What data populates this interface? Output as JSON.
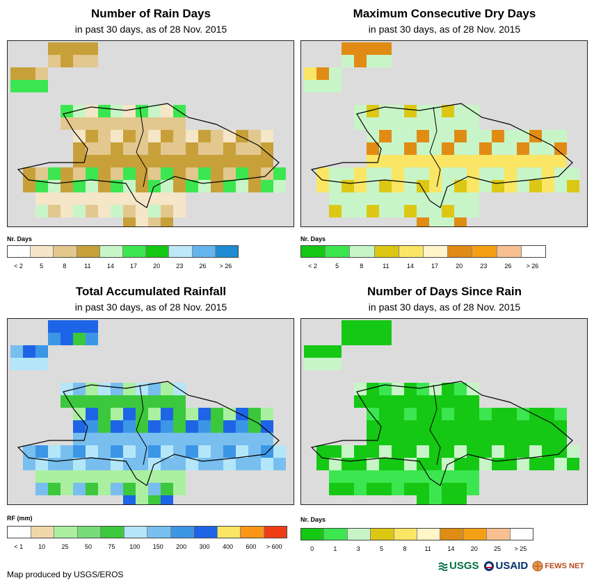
{
  "panels": [
    {
      "id": "rain_days",
      "title": "Number of Rain Days",
      "subtitle": "in past 30 days, as of 28 Nov. 2015",
      "legend_label": "Nr. Days",
      "colors": [
        "#ffffff",
        "#f5e6c8",
        "#e2c88e",
        "#c8a03a",
        "#c8f5c8",
        "#3ce650",
        "#14c814",
        "#bce8f8",
        "#64b4ee",
        "#1e8cd2"
      ],
      "ticks": [
        "< 2",
        "5",
        "8",
        "11",
        "14",
        "17",
        "20",
        "23",
        "26",
        "> 26"
      ]
    },
    {
      "id": "dry_days",
      "title": "Maximum Consecutive Dry Days",
      "subtitle": "in past 30 days, as of 28 Nov. 2015",
      "legend_label": "Nr. Days",
      "colors": [
        "#14c814",
        "#3ce650",
        "#c8f5c8",
        "#dcc814",
        "#fae664",
        "#fff5c8",
        "#e08c14",
        "#f5a014",
        "#f8c090",
        "#ffffff"
      ],
      "ticks": [
        "< 2",
        "5",
        "8",
        "11",
        "14",
        "17",
        "20",
        "23",
        "26",
        "> 26"
      ]
    },
    {
      "id": "rainfall",
      "title": "Total Accumulated Rainfall",
      "subtitle": "in past 30 days, as of 28 Nov. 2015",
      "legend_label": "RF (mm)",
      "colors": [
        "#ffffff",
        "#f0d7aa",
        "#aaf0a0",
        "#78dc78",
        "#3cc83c",
        "#b4e6fa",
        "#78beee",
        "#3c96e6",
        "#1e64e6",
        "#fae664",
        "#fa9614",
        "#f03c14"
      ],
      "ticks": [
        "< 1",
        "10",
        "25",
        "50",
        "75",
        "100",
        "150",
        "200",
        "300",
        "400",
        "600",
        "> 600"
      ]
    },
    {
      "id": "since_rain",
      "title": "Number of Days Since Rain",
      "subtitle": "in past 30 days, as of 28 Nov. 2015",
      "legend_label": "Nr. Days",
      "colors": [
        "#14c814",
        "#3ce650",
        "#c8f5c8",
        "#dcc814",
        "#fae664",
        "#fff5c8",
        "#e08c14",
        "#f5a014",
        "#f8c090",
        "#ffffff"
      ],
      "ticks": [
        "0",
        "1",
        "3",
        "5",
        "8",
        "11",
        "14",
        "20",
        "25",
        "> 25"
      ]
    }
  ],
  "credit": "Map produced by USGS/EROS",
  "logos": [
    "USGS",
    "USAID",
    "FEWS NET"
  ]
}
